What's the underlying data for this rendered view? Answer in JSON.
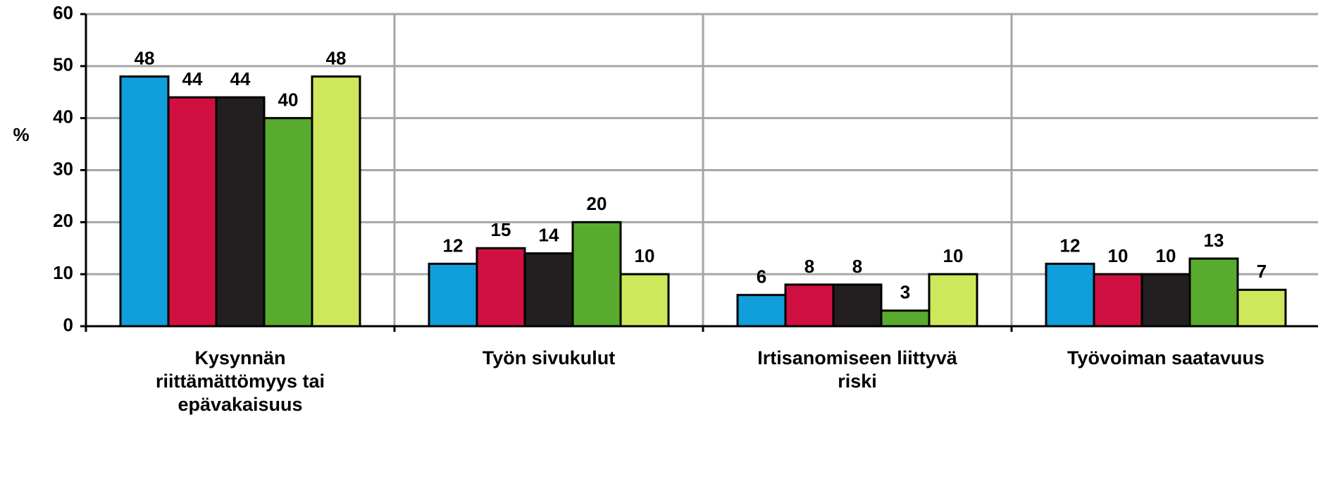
{
  "chart_data": {
    "type": "bar",
    "y_label": "%",
    "categories": [
      "Kysynnän riittämättömyys tai epävakaisuus",
      "Työn sivukulut",
      "Irtisanomiseen liittyvä riski",
      "Työvoiman saatavuus"
    ],
    "series": [
      {
        "color": "#119fdb",
        "values": [
          48,
          12,
          6,
          12
        ]
      },
      {
        "color": "#d01040",
        "values": [
          44,
          15,
          8,
          10
        ]
      },
      {
        "color": "#231f20",
        "values": [
          44,
          14,
          8,
          10
        ]
      },
      {
        "color": "#58ab2e",
        "values": [
          40,
          20,
          3,
          13
        ]
      },
      {
        "color": "#cde85a",
        "values": [
          48,
          10,
          10,
          7
        ]
      }
    ],
    "ylim": [
      0,
      60
    ],
    "yticks": [
      0,
      10,
      20,
      30,
      40,
      50,
      60
    ],
    "grid": true,
    "data_labels": true
  }
}
